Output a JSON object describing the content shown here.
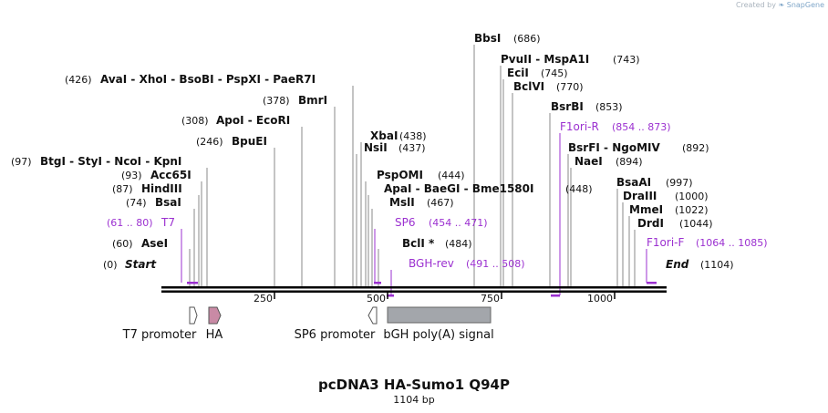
{
  "credit": {
    "prefix": "Created by",
    "brand": "SnapGene"
  },
  "title": "pcDNA3 HA-Sumo1 Q94P",
  "subtitle": "1104 bp",
  "ticks": [
    "250",
    "500",
    "750",
    "1000"
  ],
  "sites": [
    {
      "name": "Start",
      "pos": "(0)",
      "kind": "start"
    },
    {
      "name": "AseI",
      "pos": "(60)"
    },
    {
      "name": "BsaI",
      "pos": "(74)"
    },
    {
      "name": "HindIII",
      "pos": "(87)"
    },
    {
      "name": "Acc65I",
      "pos": "(93)"
    },
    {
      "name": "BtgI  - StyI  - NcoI  - KpnI",
      "pos": "(97)"
    },
    {
      "name": "BpuEI",
      "pos": "(246)"
    },
    {
      "name": "ApoI  - EcoRI",
      "pos": "(308)"
    },
    {
      "name": "BmrI",
      "pos": "(378)"
    },
    {
      "name": "AvaI  - XhoI  - BsoBI  - PspXI  - PaeR7I",
      "pos": "(426)"
    },
    {
      "name": "NsiI",
      "pos": "(437)"
    },
    {
      "name": "XbaI",
      "pos": "(438)"
    },
    {
      "name": "PspOMI",
      "pos": "(444)"
    },
    {
      "name": "ApaI  - BaeGI  - Bme1580I",
      "pos": "(448)"
    },
    {
      "name": "MslI",
      "pos": "(467)"
    },
    {
      "name": "BclI *",
      "pos": "(484)"
    },
    {
      "name": "BbsI",
      "pos": "(686)"
    },
    {
      "name": "PvuII  - MspA1I",
      "pos": "(743)"
    },
    {
      "name": "EciI",
      "pos": "(745)"
    },
    {
      "name": "BclVI",
      "pos": "(770)"
    },
    {
      "name": "BsrBI",
      "pos": "(853)"
    },
    {
      "name": "BsrFI  - NgoMIV",
      "pos": "(892)"
    },
    {
      "name": "NaeI",
      "pos": "(894)"
    },
    {
      "name": "BsaAI",
      "pos": "(997)"
    },
    {
      "name": "DraIII",
      "pos": "(1000)"
    },
    {
      "name": "MmeI",
      "pos": "(1022)"
    },
    {
      "name": "DrdI",
      "pos": "(1044)"
    },
    {
      "name": "End",
      "pos": "(1104)",
      "kind": "end"
    }
  ],
  "primers": [
    {
      "name": "T7",
      "range": "(61 .. 80)"
    },
    {
      "name": "SP6",
      "range": "(454 .. 471)"
    },
    {
      "name": "BGH-rev",
      "range": "(491 .. 508)"
    },
    {
      "name": "F1ori-R",
      "range": "(854 .. 873)"
    },
    {
      "name": "F1ori-F",
      "range": "(1064 .. 1085)"
    }
  ],
  "features": [
    {
      "name": "T7 promoter"
    },
    {
      "name": "HA"
    },
    {
      "name": "SP6 promoter"
    },
    {
      "name": "bGH poly(A) signal"
    }
  ],
  "colors": {
    "primer": "#9b30d0",
    "ha_feature": "#c98aa5",
    "bgh_feature": "#a3a6ab",
    "backbone": "#000000",
    "site_line": "#888888"
  }
}
